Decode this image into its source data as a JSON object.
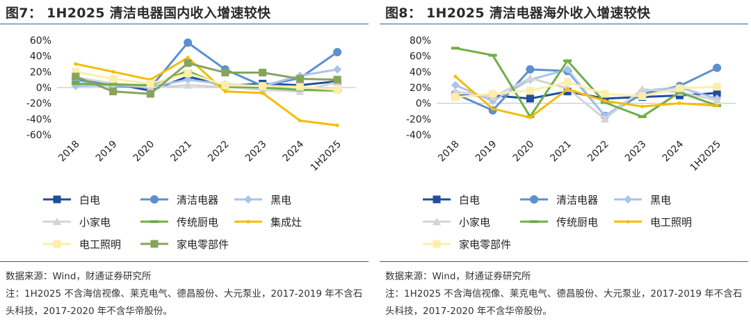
{
  "panels": [
    {
      "title": "图7：  1H2025 清洁电器国内收入增速较快",
      "source": "数据来源：Wind，财通证券研究所",
      "note": "注：1H2025 不含海信视像、莱克电气、德昌股份、大元泵业，2017-2019 年不含石头科技，2017-2020 年不含华帝股份。",
      "legend": [
        "白电",
        "清洁电器",
        "黑电",
        "小家电",
        "传统厨电",
        "集成灶",
        "电工照明",
        "家电零部件"
      ]
    },
    {
      "title": "图8：  1H2025 清洁电器海外收入增速较快",
      "source": "数据来源：Wind，财通证券研究所",
      "note": "注：1H2025 不含海信视像、莱克电气、德昌股份、大元泵业，2017-2019 年不含石头科技，2017-2020 年不含华帝股份。",
      "legend": [
        "白电",
        "清洁电器",
        "黑电",
        "小家电",
        "传统厨电",
        "电工照明",
        "家电零部件"
      ]
    }
  ],
  "chart_data": [
    {
      "type": "line",
      "title": "图7：  1H2025 清洁电器国内收入增速较快",
      "categories": [
        "2018",
        "2019",
        "2020",
        "2021",
        "2022",
        "2023",
        "2024",
        "1H2025"
      ],
      "ylim": [
        -0.6,
        0.6
      ],
      "yticks": [
        "-60%",
        "-40%",
        "-20%",
        "0%",
        "20%",
        "40%",
        "60%"
      ],
      "legend_position": "bottom",
      "grid": false,
      "series": [
        {
          "name": "白电",
          "color": "#1f4e9a",
          "marker": "square",
          "values": [
            0.12,
            0.05,
            -0.04,
            0.14,
            0.02,
            0.05,
            0.03,
            0.08
          ]
        },
        {
          "name": "清洁电器",
          "color": "#5b8fcf",
          "marker": "circle",
          "values": [
            0.1,
            0.02,
            0.0,
            0.57,
            0.23,
            0.02,
            0.12,
            0.45
          ]
        },
        {
          "name": "黑电",
          "color": "#a9c4ea",
          "marker": "diamond",
          "values": [
            0.02,
            0.03,
            0.01,
            0.1,
            0.04,
            0.02,
            0.15,
            0.23
          ]
        },
        {
          "name": "小家电",
          "color": "#d4d4d4",
          "marker": "triangle",
          "values": [
            0.13,
            0.05,
            0.0,
            0.03,
            0.01,
            -0.03,
            -0.05,
            0.07
          ]
        },
        {
          "name": "传统厨电",
          "color": "#6fae47",
          "marker": "dash",
          "values": [
            0.05,
            0.04,
            0.03,
            0.21,
            0.01,
            0.0,
            -0.03,
            -0.04
          ]
        },
        {
          "name": "集成灶",
          "color": "#f5bc00",
          "marker": "dot",
          "values": [
            0.3,
            0.2,
            0.1,
            0.38,
            -0.05,
            -0.07,
            -0.42,
            -0.48
          ]
        },
        {
          "name": "电工照明",
          "color": "#fdeea9",
          "marker": "square",
          "values": [
            0.2,
            0.11,
            0.05,
            0.18,
            0.03,
            0.02,
            0.01,
            -0.03
          ]
        },
        {
          "name": "家电零部件",
          "color": "#86a45c",
          "marker": "square",
          "values": [
            0.14,
            -0.05,
            -0.08,
            0.31,
            0.19,
            0.19,
            0.11,
            0.1
          ]
        }
      ]
    },
    {
      "type": "line",
      "title": "图8：  1H2025 清洁电器海外收入增速较快",
      "categories": [
        "2018",
        "2019",
        "2020",
        "2021",
        "2022",
        "2023",
        "2024",
        "1H2025"
      ],
      "ylim": [
        -0.4,
        0.8
      ],
      "yticks": [
        "-40%",
        "-20%",
        "0%",
        "20%",
        "40%",
        "60%",
        "80%"
      ],
      "legend_position": "bottom",
      "grid": false,
      "series": [
        {
          "name": "白电",
          "color": "#1f4e9a",
          "marker": "square",
          "values": [
            0.1,
            0.1,
            0.06,
            0.15,
            0.06,
            0.08,
            0.1,
            0.13
          ]
        },
        {
          "name": "清洁电器",
          "color": "#5b8fcf",
          "marker": "circle",
          "values": [
            0.12,
            -0.09,
            0.43,
            0.41,
            -0.16,
            0.12,
            0.22,
            0.45
          ]
        },
        {
          "name": "黑电",
          "color": "#a9c4ea",
          "marker": "diamond",
          "values": [
            0.23,
            0.03,
            0.3,
            0.43,
            -0.16,
            0.16,
            0.2,
            0.06
          ]
        },
        {
          "name": "小家电",
          "color": "#d4d4d4",
          "marker": "triangle",
          "values": [
            0.15,
            0.08,
            0.32,
            0.19,
            -0.2,
            0.18,
            0.14,
            0.04
          ]
        },
        {
          "name": "传统厨电",
          "color": "#6fae47",
          "marker": "dash",
          "values": [
            0.7,
            0.61,
            -0.17,
            0.54,
            0.01,
            -0.17,
            0.14,
            -0.03
          ]
        },
        {
          "name": "电工照明",
          "color": "#f5bc00",
          "marker": "dot",
          "values": [
            0.34,
            -0.07,
            -0.18,
            0.18,
            0.03,
            -0.04,
            0.0,
            -0.03
          ]
        },
        {
          "name": "家电零部件",
          "color": "#fdeea9",
          "marker": "square",
          "values": [
            0.08,
            0.12,
            0.16,
            0.27,
            0.12,
            0.09,
            0.19,
            0.21
          ]
        }
      ]
    }
  ]
}
